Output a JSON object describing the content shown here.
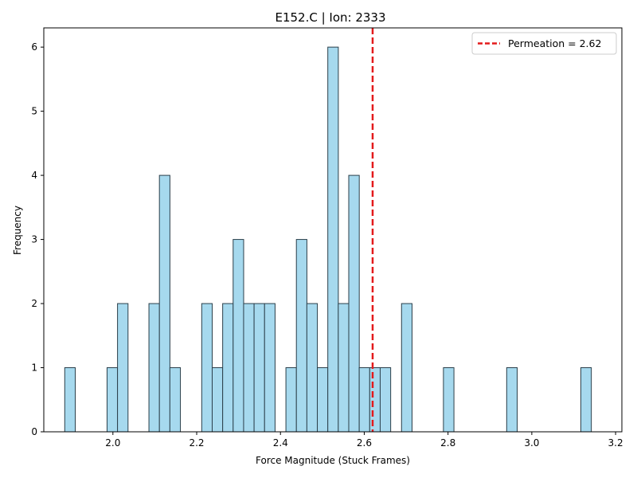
{
  "chart_data": {
    "type": "bar",
    "title": "E152.C | Ion: 2333",
    "xlabel": "Force Magnitude (Stuck Frames)",
    "ylabel": "Frequency",
    "xlim": [
      1.835,
      3.215
    ],
    "ylim": [
      0,
      6.3
    ],
    "x_ticks": [
      2.0,
      2.2,
      2.4,
      2.6,
      2.8,
      3.0,
      3.2
    ],
    "x_tick_labels": [
      "2.0",
      "2.2",
      "2.4",
      "2.6",
      "2.8",
      "3.0",
      "3.2"
    ],
    "y_ticks": [
      0,
      1,
      2,
      3,
      4,
      5,
      6
    ],
    "y_tick_labels": [
      "0",
      "1",
      "2",
      "3",
      "4",
      "5",
      "6"
    ],
    "bin_width": 0.0251,
    "bins": [
      {
        "x": 1.885,
        "count": 1
      },
      {
        "x": 1.986,
        "count": 1
      },
      {
        "x": 2.011,
        "count": 2
      },
      {
        "x": 2.086,
        "count": 2
      },
      {
        "x": 2.111,
        "count": 4
      },
      {
        "x": 2.136,
        "count": 1
      },
      {
        "x": 2.212,
        "count": 2
      },
      {
        "x": 2.237,
        "count": 1
      },
      {
        "x": 2.262,
        "count": 2
      },
      {
        "x": 2.287,
        "count": 3
      },
      {
        "x": 2.312,
        "count": 2
      },
      {
        "x": 2.337,
        "count": 2
      },
      {
        "x": 2.362,
        "count": 2
      },
      {
        "x": 2.413,
        "count": 1
      },
      {
        "x": 2.438,
        "count": 3
      },
      {
        "x": 2.463,
        "count": 2
      },
      {
        "x": 2.488,
        "count": 1
      },
      {
        "x": 2.513,
        "count": 6
      },
      {
        "x": 2.538,
        "count": 2
      },
      {
        "x": 2.563,
        "count": 4
      },
      {
        "x": 2.588,
        "count": 1
      },
      {
        "x": 2.613,
        "count": 1
      },
      {
        "x": 2.638,
        "count": 1
      },
      {
        "x": 2.689,
        "count": 2
      },
      {
        "x": 2.789,
        "count": 1
      },
      {
        "x": 2.94,
        "count": 1
      },
      {
        "x": 3.117,
        "count": 1
      }
    ],
    "bar_color": "#a6d9ee",
    "bar_edge_color": "#2b3f4a",
    "vline": {
      "x": 2.62,
      "label": "Permeation = 2.62",
      "color": "#e31a1c"
    },
    "legend_position": "upper right",
    "grid": false
  }
}
